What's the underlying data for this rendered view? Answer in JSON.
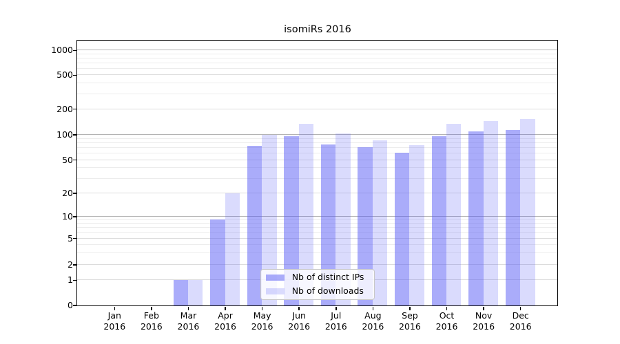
{
  "chart_data": {
    "type": "bar",
    "title": "isomiRs 2016",
    "x_tick_months": [
      "Jan",
      "Feb",
      "Mar",
      "Apr",
      "May",
      "Jun",
      "Jul",
      "Aug",
      "Sep",
      "Oct",
      "Nov",
      "Dec"
    ],
    "x_tick_year": "2016",
    "y_ticks": [
      0,
      1,
      2,
      5,
      10,
      20,
      50,
      100,
      200,
      500,
      1000
    ],
    "y_minor_gridlines": [
      3,
      4,
      6,
      7,
      8,
      9,
      30,
      40,
      60,
      70,
      80,
      90,
      300,
      400,
      600,
      700,
      800,
      900
    ],
    "y_scale": "symlog",
    "ylim": [
      0,
      1300
    ],
    "grid": true,
    "legend_position": "lower-center",
    "series": [
      {
        "name": "Nb of distinct IPs",
        "color_hex": "#a8abf5",
        "color_rgba": "rgba(85,90,245,0.50)",
        "values": [
          0,
          0,
          1,
          9,
          73,
          96,
          76,
          70,
          61,
          95,
          108,
          112
        ]
      },
      {
        "name": "Nb of downloads",
        "color_hex": "#d9dbfb",
        "color_rgba": "rgba(85,90,245,0.22)",
        "values": [
          0,
          0,
          1,
          20,
          100,
          133,
          102,
          85,
          74,
          133,
          143,
          152
        ]
      }
    ]
  }
}
